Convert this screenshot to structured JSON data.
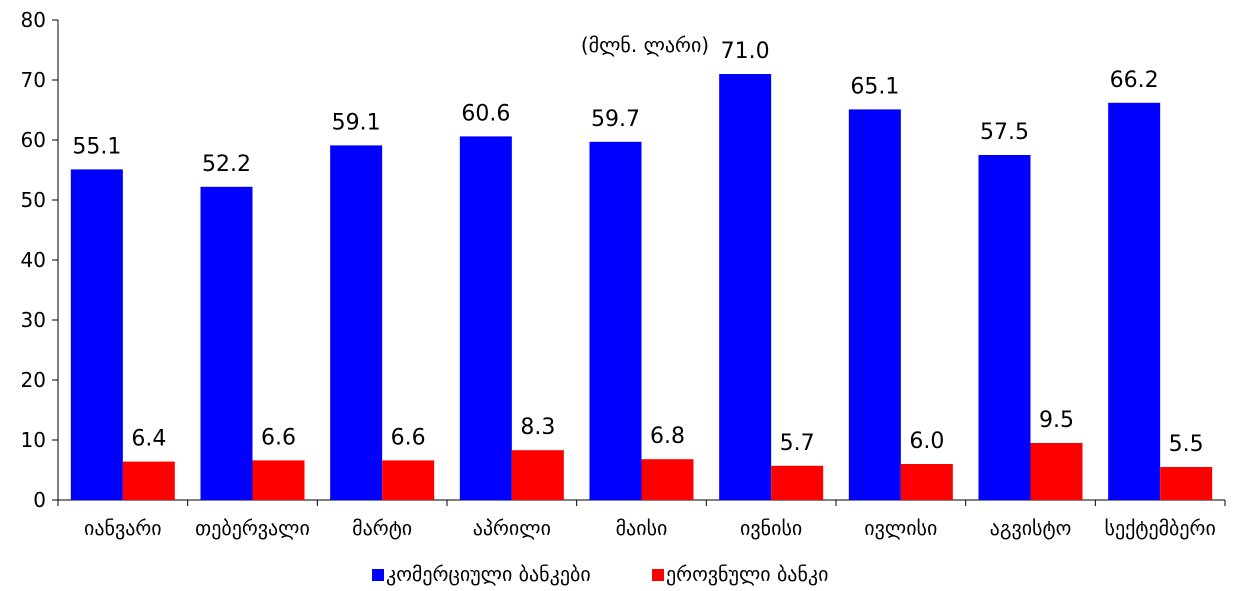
{
  "chart_data": {
    "type": "bar",
    "title": "(მლნ. ლარი)",
    "xlabel": "",
    "ylabel": "",
    "ylim": [
      0,
      80
    ],
    "yticks": [
      0,
      10,
      20,
      30,
      40,
      50,
      60,
      70,
      80
    ],
    "grid": false,
    "legend_position": "bottom",
    "categories": [
      "იანვარი",
      "თებერვალი",
      "მარტი",
      "აპრილი",
      "მაისი",
      "ივნისი",
      "ივლისი",
      "აგვისტო",
      "სექტემბერი"
    ],
    "series": [
      {
        "name": "კომერციული ბანკები",
        "color": "#0000ff",
        "values": [
          55.1,
          52.2,
          59.1,
          60.6,
          59.7,
          71.0,
          65.1,
          57.5,
          66.2
        ]
      },
      {
        "name": "ეროვნული ბანკი",
        "color": "#ff0000",
        "values": [
          6.4,
          6.6,
          6.6,
          8.3,
          6.8,
          5.7,
          6.0,
          9.5,
          5.5
        ]
      }
    ]
  }
}
